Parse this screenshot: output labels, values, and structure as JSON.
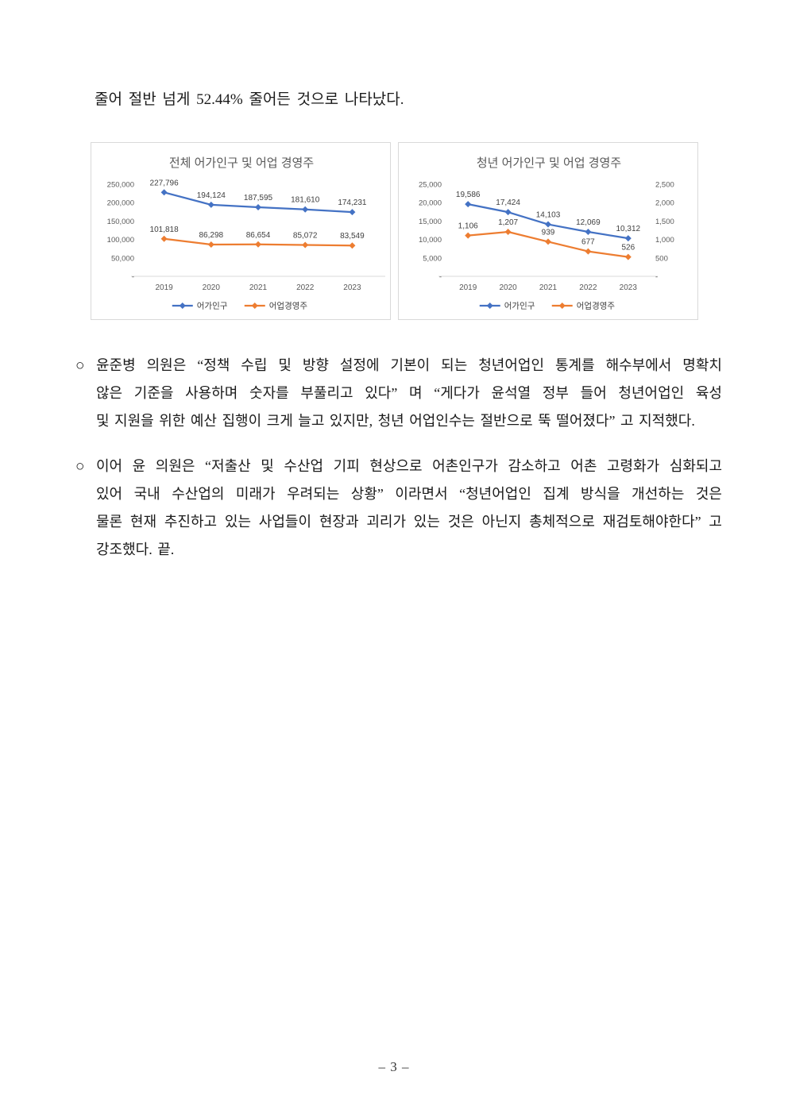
{
  "page": {
    "intro_line": "줄어 절반 넘게 52.44% 줄어든 것으로 나타났다.",
    "footer": "– 3 –"
  },
  "paragraphs": [
    {
      "marker": "○",
      "lines": [
        "윤준병 의원은 “정책 수립 및 방향 설정에 기본이 되는 청년어업인 통계를 해수부에서 명확치",
        "않은 기준을 사용하며 숫자를 부풀리고 있다” 며 “게다가 윤석열 정부 들어 청년어업인 육성",
        "및 지원을 위한 예산 집행이 크게 늘고 있지만, 청년 어업인수는 절반으로 뚝 떨어졌다” 고 지적했다."
      ]
    },
    {
      "marker": "○",
      "lines": [
        "이어 윤 의원은 “저출산 및 수산업 기피 현상으로 어촌인구가 감소하고 어촌 고령화가 심화되고",
        "있어 국내 수산업의 미래가 우려되는 상황” 이라면서 “청년어업인 집계 방식을 개선하는 것은",
        "물론 현재 추진하고 있는 사업들이 현장과 괴리가 있는 것은 아닌지 총체적으로 재검토해야한다” 고",
        "강조했다. 끝."
      ]
    }
  ],
  "colors": {
    "series_blue": "#4472C4",
    "series_orange": "#ED7D31",
    "axis_line": "#D9D9D9",
    "tick_label": "#595959",
    "data_label": "#404040"
  },
  "chart_data": [
    {
      "type": "line",
      "title": "전체 어가인구 및 어업 경영주",
      "categories": [
        "2019",
        "2020",
        "2021",
        "2022",
        "2023"
      ],
      "series": [
        {
          "name": "어가인구",
          "color": "#4472C4",
          "axis": "left",
          "marker": "diamond",
          "values": [
            227796,
            194124,
            187595,
            181610,
            174231
          ],
          "labels": [
            "227,796",
            "194,124",
            "187,595",
            "181,610",
            "174,231"
          ]
        },
        {
          "name": "어업경영주",
          "color": "#ED7D31",
          "axis": "left",
          "marker": "diamond",
          "values": [
            101818,
            86298,
            86654,
            85072,
            83549
          ],
          "labels": [
            "101,818",
            "86,298",
            "86,654",
            "85,072",
            "83,549"
          ]
        }
      ],
      "left_axis": {
        "min": 0,
        "max": 250000,
        "step": 50000,
        "tick_labels": [
          "-",
          "50,000",
          "100,000",
          "150,000",
          "200,000",
          "250,000"
        ]
      },
      "legend_position": "bottom",
      "grid": false
    },
    {
      "type": "line",
      "title": "청년 어가인구 및 어업 경영주",
      "categories": [
        "2019",
        "2020",
        "2021",
        "2022",
        "2023"
      ],
      "series": [
        {
          "name": "어가인구",
          "color": "#4472C4",
          "axis": "left",
          "marker": "diamond",
          "values": [
            19586,
            17424,
            14103,
            12069,
            10312
          ],
          "labels": [
            "19,586",
            "17,424",
            "14,103",
            "12,069",
            "10,312"
          ]
        },
        {
          "name": "어업경영주",
          "color": "#ED7D31",
          "axis": "right",
          "marker": "diamond",
          "values": [
            1106,
            1207,
            939,
            677,
            526
          ],
          "labels": [
            "1,106",
            "1,207",
            "939",
            "677",
            "526"
          ]
        }
      ],
      "left_axis": {
        "min": 0,
        "max": 25000,
        "step": 5000,
        "tick_labels": [
          "-",
          "5,000",
          "10,000",
          "15,000",
          "20,000",
          "25,000"
        ]
      },
      "right_axis": {
        "min": 0,
        "max": 2500,
        "step": 500,
        "tick_labels": [
          "-",
          "500",
          "1,000",
          "1,500",
          "2,000",
          "2,500"
        ]
      },
      "legend_position": "bottom",
      "grid": false
    }
  ]
}
